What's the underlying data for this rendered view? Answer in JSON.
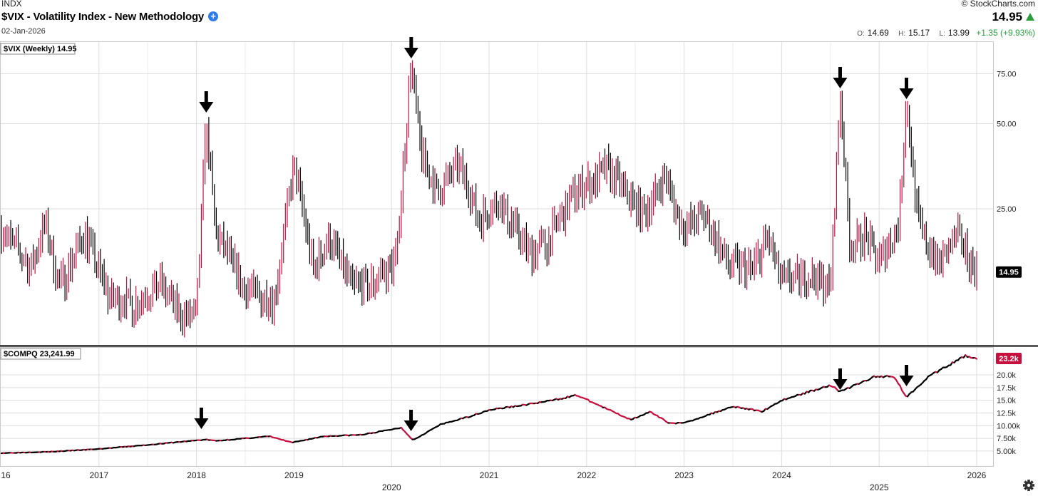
{
  "header": {
    "exchange": "INDX",
    "title": "$VIX - Volatility Index - New Methodology",
    "date": "02-Jan-2026",
    "brand": "© StockCharts.com",
    "last_price": "14.95",
    "open_label": "O:",
    "open": "14.69",
    "high_label": "H:",
    "high": "15.17",
    "low_label": "L:",
    "low": "13.99",
    "change": "+1.35 (+9.93%)"
  },
  "colors": {
    "up": "#000000",
    "down": "#c8103e",
    "grid": "#dddddd",
    "accent_up": "#2a9d3c",
    "badge": "#c8103e"
  },
  "chart_data": [
    {
      "type": "ohlc-bar",
      "panel_label": "$VIX (Weekly) 14.95",
      "y_scale": "log",
      "yticks": [
        75,
        50,
        25
      ],
      "ytick_labels": [
        "75.00",
        "50.00",
        "25.00"
      ],
      "last_value_label": "14.95",
      "x_tick_labels": [
        "16",
        "2017",
        "2018",
        "2019",
        "2020",
        "2021",
        "2022",
        "2023",
        "2024",
        "2025",
        "2026"
      ],
      "key_points": [
        {
          "x": 2016.0,
          "y": 21
        },
        {
          "x": 2016.3,
          "y": 15.5
        },
        {
          "x": 2016.45,
          "y": 22
        },
        {
          "x": 2016.6,
          "y": 13.2
        },
        {
          "x": 2016.85,
          "y": 20.5
        },
        {
          "x": 2017.1,
          "y": 12.2
        },
        {
          "x": 2017.4,
          "y": 11.5
        },
        {
          "x": 2017.6,
          "y": 13.8
        },
        {
          "x": 2017.85,
          "y": 10.2
        },
        {
          "x": 2018.0,
          "y": 10.8
        },
        {
          "x": 2018.1,
          "y": 50
        },
        {
          "x": 2018.2,
          "y": 20.5
        },
        {
          "x": 2018.5,
          "y": 13
        },
        {
          "x": 2018.8,
          "y": 11.8
        },
        {
          "x": 2019.0,
          "y": 36
        },
        {
          "x": 2019.2,
          "y": 15.2
        },
        {
          "x": 2019.35,
          "y": 20
        },
        {
          "x": 2019.6,
          "y": 13.2
        },
        {
          "x": 2019.8,
          "y": 13.6
        },
        {
          "x": 2020.05,
          "y": 16.5
        },
        {
          "x": 2020.2,
          "y": 82
        },
        {
          "x": 2020.3,
          "y": 40
        },
        {
          "x": 2020.45,
          "y": 29
        },
        {
          "x": 2020.7,
          "y": 35
        },
        {
          "x": 2020.9,
          "y": 23
        },
        {
          "x": 2021.1,
          "y": 27
        },
        {
          "x": 2021.4,
          "y": 17.5
        },
        {
          "x": 2021.6,
          "y": 19
        },
        {
          "x": 2021.85,
          "y": 28
        },
        {
          "x": 2022.05,
          "y": 31
        },
        {
          "x": 2022.2,
          "y": 35
        },
        {
          "x": 2022.45,
          "y": 27
        },
        {
          "x": 2022.6,
          "y": 24
        },
        {
          "x": 2022.8,
          "y": 32
        },
        {
          "x": 2023.0,
          "y": 21
        },
        {
          "x": 2023.2,
          "y": 24
        },
        {
          "x": 2023.45,
          "y": 16
        },
        {
          "x": 2023.7,
          "y": 15
        },
        {
          "x": 2023.85,
          "y": 20
        },
        {
          "x": 2024.0,
          "y": 13.8
        },
        {
          "x": 2024.3,
          "y": 14.5
        },
        {
          "x": 2024.5,
          "y": 13.2
        },
        {
          "x": 2024.6,
          "y": 65
        },
        {
          "x": 2024.7,
          "y": 18
        },
        {
          "x": 2024.85,
          "y": 20
        },
        {
          "x": 2025.0,
          "y": 16.5
        },
        {
          "x": 2025.2,
          "y": 22
        },
        {
          "x": 2025.28,
          "y": 60
        },
        {
          "x": 2025.4,
          "y": 22
        },
        {
          "x": 2025.6,
          "y": 16
        },
        {
          "x": 2025.8,
          "y": 20
        },
        {
          "x": 2026.0,
          "y": 14.95
        }
      ],
      "marker_arrows_x": [
        2018.1,
        2020.18,
        2024.6,
        2025.28
      ]
    },
    {
      "type": "line",
      "panel_label": "$COMPQ 23,241.99",
      "yticks": [
        20000,
        17500,
        15000,
        12500,
        10000,
        7500,
        5000
      ],
      "ytick_labels": [
        "20.0k",
        "17.5k",
        "15.0k",
        "12.5k",
        "10.00k",
        "7.50k",
        "5.00k"
      ],
      "last_value_label": "23.2k",
      "points": [
        {
          "x": 2016.0,
          "y": 4600
        },
        {
          "x": 2016.5,
          "y": 4850
        },
        {
          "x": 2017.0,
          "y": 5400
        },
        {
          "x": 2017.5,
          "y": 6200
        },
        {
          "x": 2018.0,
          "y": 7100
        },
        {
          "x": 2018.1,
          "y": 7250
        },
        {
          "x": 2018.2,
          "y": 7000
        },
        {
          "x": 2018.75,
          "y": 7900
        },
        {
          "x": 2018.98,
          "y": 6650
        },
        {
          "x": 2019.3,
          "y": 7900
        },
        {
          "x": 2019.7,
          "y": 8200
        },
        {
          "x": 2020.1,
          "y": 9600
        },
        {
          "x": 2020.22,
          "y": 7150
        },
        {
          "x": 2020.5,
          "y": 10200
        },
        {
          "x": 2020.8,
          "y": 11800
        },
        {
          "x": 2021.0,
          "y": 13100
        },
        {
          "x": 2021.3,
          "y": 13900
        },
        {
          "x": 2021.6,
          "y": 14800
        },
        {
          "x": 2021.9,
          "y": 16000
        },
        {
          "x": 2022.15,
          "y": 13800
        },
        {
          "x": 2022.45,
          "y": 11200
        },
        {
          "x": 2022.65,
          "y": 12700
        },
        {
          "x": 2022.85,
          "y": 10500
        },
        {
          "x": 2023.0,
          "y": 10500
        },
        {
          "x": 2023.5,
          "y": 13800
        },
        {
          "x": 2023.8,
          "y": 12800
        },
        {
          "x": 2024.0,
          "y": 15000
        },
        {
          "x": 2024.5,
          "y": 18000
        },
        {
          "x": 2024.6,
          "y": 16700
        },
        {
          "x": 2024.95,
          "y": 19600
        },
        {
          "x": 2025.15,
          "y": 19800
        },
        {
          "x": 2025.28,
          "y": 15600
        },
        {
          "x": 2025.5,
          "y": 19600
        },
        {
          "x": 2025.8,
          "y": 22800
        },
        {
          "x": 2025.88,
          "y": 23800
        },
        {
          "x": 2026.0,
          "y": 23242
        }
      ],
      "marker_arrows_x": [
        2018.05,
        2020.2,
        2024.6,
        2025.28
      ]
    }
  ]
}
